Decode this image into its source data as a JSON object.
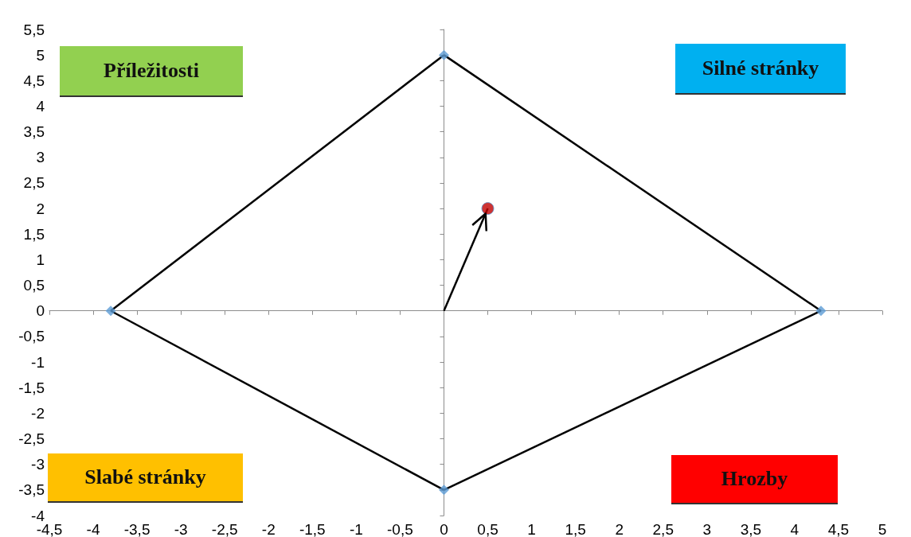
{
  "chart_data": {
    "type": "scatter",
    "annotations": [
      "Příležitosti",
      "Silné stránky",
      "Slabé stránky",
      "Hrozby"
    ],
    "xlim": [
      -4.5,
      5
    ],
    "xticks": [
      {
        "value": -4.5,
        "label": "-4,5"
      },
      -4,
      {
        "value": -3.5,
        "label": "-3,5"
      },
      -3,
      {
        "value": -2.5,
        "label": "-2,5"
      },
      -2,
      {
        "value": -1.5,
        "label": "-1,5"
      },
      -1,
      {
        "value": -0.5,
        "label": "-0,5"
      },
      0,
      {
        "value": 0.5,
        "label": "0,5"
      },
      1,
      {
        "value": 1.5,
        "label": "1,5"
      },
      2,
      {
        "value": 2.5,
        "label": "2,5"
      },
      3,
      {
        "value": 3.5,
        "label": "3,5"
      },
      4,
      {
        "value": 4.5,
        "label": "4,5"
      },
      5
    ],
    "ylim": [
      -4,
      5.5
    ],
    "yticks": [
      -4,
      {
        "value": -3.5,
        "label": "-3,5"
      },
      -3,
      {
        "value": -2.5,
        "label": "-2,5"
      },
      -2,
      {
        "value": -1.5,
        "label": "-1,5"
      },
      -1,
      {
        "value": -0.5,
        "label": "-0,5"
      },
      0,
      {
        "value": 0.5,
        "label": "0,5"
      },
      1,
      {
        "value": 1.5,
        "label": "1,5"
      },
      2,
      {
        "value": 2.5,
        "label": "2,5"
      },
      3,
      {
        "value": 3.5,
        "label": "3,5"
      },
      4,
      {
        "value": 4.5,
        "label": "4,5"
      },
      5,
      {
        "value": 5.5,
        "label": "5,5"
      }
    ],
    "series": [
      {
        "type": "line",
        "color": "#000000",
        "marker": "none",
        "x": [
          0,
          4.3
        ],
        "values": [
          5,
          0
        ]
      },
      {
        "type": "line",
        "color": "#000000",
        "marker": "none",
        "x": [
          4.3,
          0
        ],
        "values": [
          0,
          -3.5
        ]
      },
      {
        "type": "line",
        "color": "#000000",
        "marker": "none",
        "x": [
          0,
          -3.8
        ],
        "values": [
          -3.5,
          0
        ]
      },
      {
        "type": "line",
        "color": "#000000",
        "marker": "none",
        "x": [
          -3.8,
          0
        ],
        "values": [
          0,
          5
        ]
      },
      {
        "type": "scatter",
        "color": "#5b9bd5",
        "marker": "diamond",
        "x": [
          0,
          4.3,
          0,
          -3.8
        ],
        "values": [
          5,
          0,
          -3.5,
          0
        ]
      },
      {
        "type": "line",
        "color": "#000000",
        "marker": "none",
        "x": [
          0,
          0.5
        ],
        "values": [
          0,
          2
        ]
      },
      {
        "type": "scatter",
        "color": "#c00000",
        "marker": "circle",
        "x": [
          0.5
        ],
        "values": [
          2
        ]
      }
    ]
  }
}
